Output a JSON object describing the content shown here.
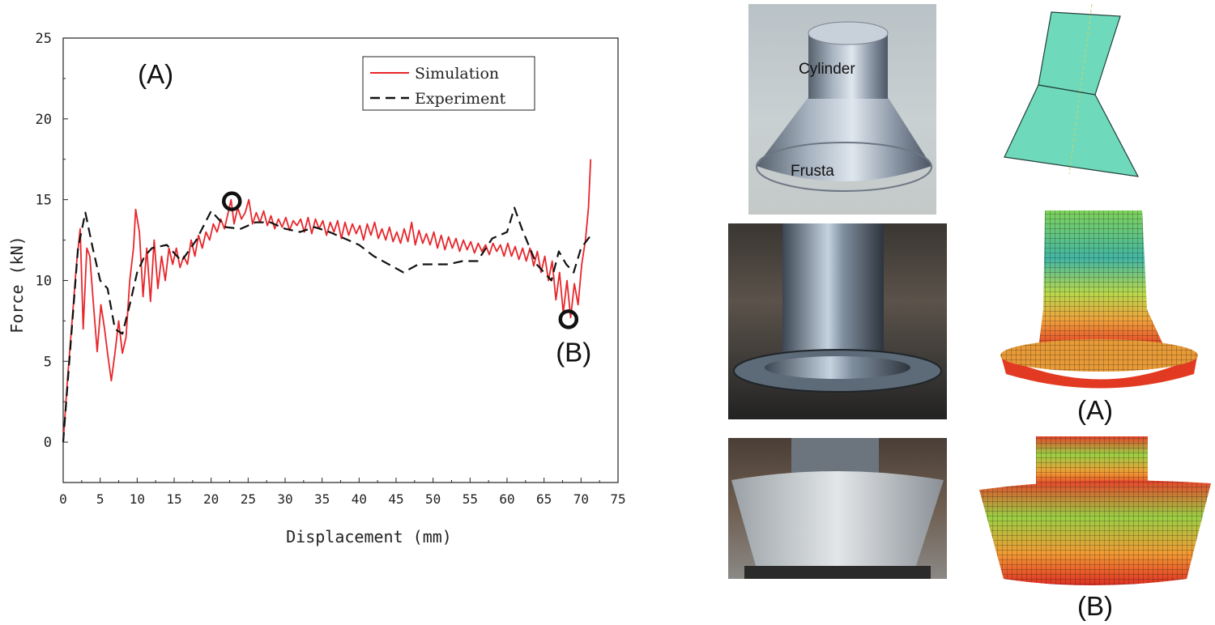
{
  "chart_data": {
    "type": "line",
    "xlabel": "Displacement (mm)",
    "ylabel": "Force (kN)",
    "xlim": [
      0,
      75
    ],
    "ylim": [
      -2.5,
      25
    ],
    "xticks": [
      0,
      5,
      10,
      15,
      20,
      25,
      30,
      35,
      40,
      45,
      50,
      55,
      60,
      65,
      70,
      75
    ],
    "yticks": [
      0,
      5,
      10,
      15,
      20,
      25
    ],
    "grid": false,
    "legend_position": "top-right",
    "series": [
      {
        "name": "Simulation",
        "color": "#e8262b",
        "style": "solid",
        "points": [
          [
            0,
            0
          ],
          [
            0.6,
            4
          ],
          [
            1.2,
            7.5
          ],
          [
            1.8,
            11
          ],
          [
            2.3,
            13.2
          ],
          [
            2.7,
            7
          ],
          [
            3.2,
            12
          ],
          [
            3.6,
            11.5
          ],
          [
            4.1,
            8.5
          ],
          [
            4.6,
            5.6
          ],
          [
            5.1,
            8.5
          ],
          [
            5.6,
            7
          ],
          [
            6,
            5.5
          ],
          [
            6.5,
            3.8
          ],
          [
            7,
            5.5
          ],
          [
            7.5,
            7.5
          ],
          [
            8,
            5.5
          ],
          [
            8.5,
            6.5
          ],
          [
            9,
            10
          ],
          [
            9.5,
            12
          ],
          [
            9.8,
            14.4
          ],
          [
            10.3,
            13
          ],
          [
            10.8,
            9
          ],
          [
            11.3,
            12
          ],
          [
            11.8,
            8.7
          ],
          [
            12.3,
            12.5
          ],
          [
            12.8,
            9.5
          ],
          [
            13.3,
            11.5
          ],
          [
            13.8,
            10
          ],
          [
            14.3,
            12
          ],
          [
            14.8,
            11
          ],
          [
            15.3,
            12
          ],
          [
            15.8,
            10.8
          ],
          [
            16.3,
            11.5
          ],
          [
            16.8,
            11
          ],
          [
            17.3,
            12.5
          ],
          [
            17.8,
            11.5
          ],
          [
            18.3,
            12.8
          ],
          [
            18.8,
            12
          ],
          [
            19.3,
            13
          ],
          [
            19.8,
            12.5
          ],
          [
            20.3,
            13.5
          ],
          [
            20.8,
            13
          ],
          [
            21.3,
            13.8
          ],
          [
            21.8,
            13.2
          ],
          [
            22.3,
            14.2
          ],
          [
            22.7,
            15
          ],
          [
            23.1,
            13.5
          ],
          [
            23.6,
            14.5
          ],
          [
            24.1,
            13.8
          ],
          [
            24.6,
            14.2
          ],
          [
            25.1,
            15
          ],
          [
            25.6,
            13.5
          ],
          [
            26.1,
            14.2
          ],
          [
            26.6,
            13.6
          ],
          [
            27.1,
            14.3
          ],
          [
            27.6,
            13.4
          ],
          [
            28.1,
            14
          ],
          [
            28.6,
            13.2
          ],
          [
            29.1,
            13.8
          ],
          [
            29.6,
            13.3
          ],
          [
            30.1,
            13.9
          ],
          [
            30.6,
            13.1
          ],
          [
            31.1,
            13.7
          ],
          [
            31.6,
            13.4
          ],
          [
            32.1,
            13.8
          ],
          [
            32.6,
            13
          ],
          [
            33.1,
            13.9
          ],
          [
            33.6,
            12.9
          ],
          [
            34.1,
            13.8
          ],
          [
            34.6,
            13.2
          ],
          [
            35.1,
            13.7
          ],
          [
            35.6,
            12.8
          ],
          [
            36.1,
            13.6
          ],
          [
            36.6,
            13
          ],
          [
            37.1,
            13.7
          ],
          [
            37.6,
            12.6
          ],
          [
            38.1,
            13.6
          ],
          [
            38.6,
            12.8
          ],
          [
            39.1,
            13.5
          ],
          [
            39.6,
            12.9
          ],
          [
            40.1,
            13.4
          ],
          [
            40.6,
            12.5
          ],
          [
            41.1,
            13.5
          ],
          [
            41.6,
            12.8
          ],
          [
            42.1,
            13.6
          ],
          [
            42.6,
            12.6
          ],
          [
            43.1,
            13.2
          ],
          [
            43.6,
            12.5
          ],
          [
            44.1,
            13.3
          ],
          [
            44.6,
            12.4
          ],
          [
            45.1,
            13
          ],
          [
            45.6,
            12.3
          ],
          [
            46.1,
            13.2
          ],
          [
            46.6,
            12.4
          ],
          [
            47.1,
            13.6
          ],
          [
            47.6,
            12.2
          ],
          [
            48.1,
            13.1
          ],
          [
            48.6,
            12.3
          ],
          [
            49.1,
            12.9
          ],
          [
            49.6,
            12.2
          ],
          [
            50.1,
            13
          ],
          [
            50.6,
            12
          ],
          [
            51.1,
            12.8
          ],
          [
            51.6,
            11.9
          ],
          [
            52.1,
            12.7
          ],
          [
            52.6,
            12
          ],
          [
            53.1,
            12.6
          ],
          [
            53.6,
            11.8
          ],
          [
            54.1,
            12.5
          ],
          [
            54.6,
            11.9
          ],
          [
            55.1,
            12.4
          ],
          [
            55.6,
            11.7
          ],
          [
            56.1,
            12.3
          ],
          [
            56.6,
            11.8
          ],
          [
            57.1,
            12.2
          ],
          [
            57.6,
            11.6
          ],
          [
            58.1,
            12.3
          ],
          [
            58.6,
            11.8
          ],
          [
            59.1,
            12.2
          ],
          [
            59.6,
            11.5
          ],
          [
            60.1,
            12.3
          ],
          [
            60.6,
            11.5
          ],
          [
            61.1,
            12.1
          ],
          [
            61.6,
            11.3
          ],
          [
            62.1,
            12
          ],
          [
            62.6,
            11.2
          ],
          [
            63.1,
            12
          ],
          [
            63.6,
            10.9
          ],
          [
            64.1,
            11.8
          ],
          [
            64.6,
            10.5
          ],
          [
            65.1,
            11.5
          ],
          [
            65.6,
            10
          ],
          [
            66.1,
            11.2
          ],
          [
            66.6,
            8.8
          ],
          [
            67.1,
            10.5
          ],
          [
            67.6,
            8
          ],
          [
            68.1,
            10
          ],
          [
            68.6,
            7.7
          ],
          [
            69.1,
            9.8
          ],
          [
            69.6,
            8.5
          ],
          [
            70.1,
            11
          ],
          [
            70.6,
            12.5
          ],
          [
            71,
            14.5
          ],
          [
            71.3,
            17.5
          ]
        ]
      },
      {
        "name": "Experiment",
        "color": "#111111",
        "style": "dashed",
        "points": [
          [
            0,
            0
          ],
          [
            1,
            6
          ],
          [
            2,
            12
          ],
          [
            3,
            14.2
          ],
          [
            4,
            12
          ],
          [
            5,
            10
          ],
          [
            6,
            9.5
          ],
          [
            7,
            7
          ],
          [
            8,
            6.7
          ],
          [
            9,
            8.5
          ],
          [
            10,
            10.5
          ],
          [
            11,
            11.5
          ],
          [
            12,
            12
          ],
          [
            14,
            12.2
          ],
          [
            16,
            11.2
          ],
          [
            18,
            12.5
          ],
          [
            20,
            14.3
          ],
          [
            22,
            13.3
          ],
          [
            24,
            13.2
          ],
          [
            26,
            13.6
          ],
          [
            28,
            13.6
          ],
          [
            30,
            13.2
          ],
          [
            32,
            13
          ],
          [
            34,
            13.3
          ],
          [
            36,
            13
          ],
          [
            38,
            12.6
          ],
          [
            40,
            12.2
          ],
          [
            42,
            11.5
          ],
          [
            44,
            11
          ],
          [
            46,
            10.5
          ],
          [
            48,
            11
          ],
          [
            50,
            11
          ],
          [
            52,
            11
          ],
          [
            54,
            11.2
          ],
          [
            56,
            11.2
          ],
          [
            58,
            12.6
          ],
          [
            60,
            13
          ],
          [
            61,
            14.5
          ],
          [
            62,
            13.2
          ],
          [
            64,
            11
          ],
          [
            66,
            10
          ],
          [
            67,
            11.8
          ],
          [
            68,
            11
          ],
          [
            69,
            10.5
          ],
          [
            70,
            12
          ],
          [
            71.5,
            12.9
          ]
        ]
      }
    ],
    "annotations": [
      {
        "text": "(A)",
        "x": 12.5,
        "y": 22.2
      },
      {
        "text": "(B)",
        "x": 69,
        "y": 5
      }
    ],
    "markers": [
      {
        "type": "circle",
        "x": 22.8,
        "y": 14.9
      },
      {
        "type": "circle",
        "x": 68.3,
        "y": 7.6
      }
    ]
  },
  "photos": {
    "specimen_part_top": "Cylinder",
    "specimen_part_bottom": "Frusta",
    "label_a": "(A)",
    "label_b": "(B)"
  }
}
